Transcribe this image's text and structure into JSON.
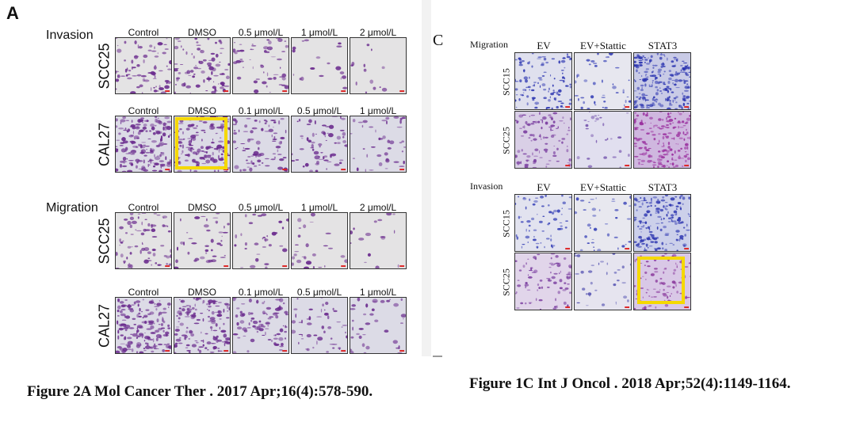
{
  "left_figure": {
    "panel_letter": "A",
    "invasion_label": "Invasion",
    "migration_label": "Migration",
    "cols_scc25": [
      "Control",
      "DMSO",
      "0.5 μmol/L",
      "1 μmol/L",
      "2 μmol/L"
    ],
    "cols_cal27": [
      "Control",
      "DMSO",
      "0.1 μmol/L",
      "0.5 μmol/L",
      "1 μmol/L"
    ],
    "row_scc25": "SCC25",
    "row_cal27": "CAL27",
    "caption": "Figure 2A Mol Cancer Ther . 2017 Apr;16(4):578-590."
  },
  "right_figure": {
    "panel_letter": "C",
    "migration_label": "Migration",
    "invasion_label": "Invasion",
    "cols": [
      "EV",
      "EV+Stattic",
      "STAT3"
    ],
    "row_scc15": "SCC15",
    "row_scc25": "SCC25",
    "caption": "Figure 1C Int J Oncol . 2018 Apr;52(4):1149-1164."
  },
  "colors": {
    "highlight": "#f5d800",
    "stain_purple": "#7b3fa0",
    "stain_blue": "#3a44b8",
    "background_light": "#e6e6ea"
  }
}
